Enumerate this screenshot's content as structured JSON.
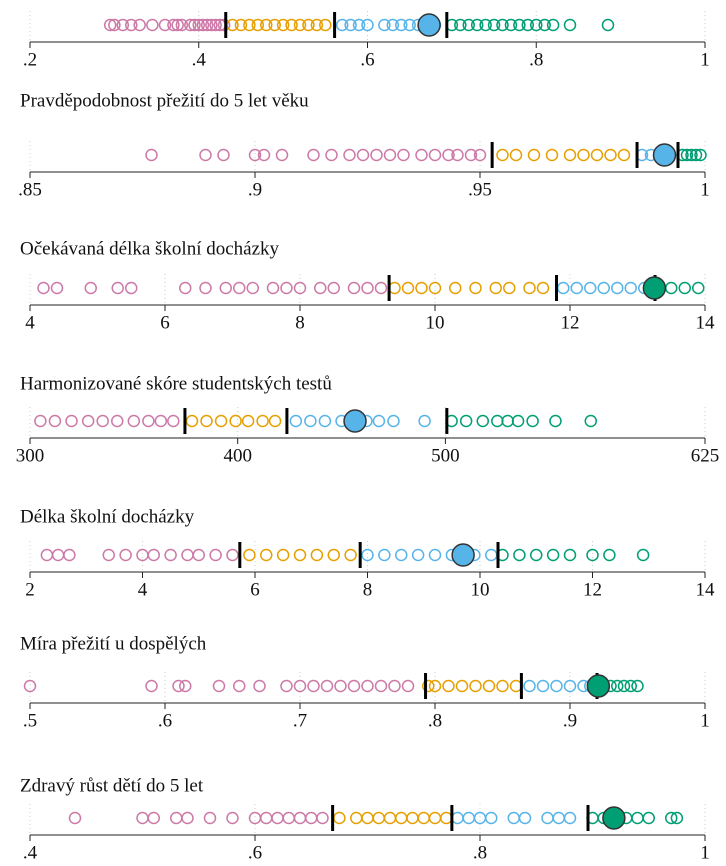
{
  "chart_data": [
    {
      "type": "strip",
      "xlim": [
        0.2,
        1
      ],
      "xticks": [
        {
          "value": 0.2,
          "label": ".2"
        },
        {
          "value": 0.4,
          "label": ".4"
        },
        {
          "value": 0.6,
          "label": ".6"
        },
        {
          "value": 0.8,
          "label": ".8"
        },
        1
      ],
      "cutoffs": [
        0.432,
        0.561,
        0.694
      ],
      "highlight": {
        "value": 0.673,
        "color": "#56b4e9"
      },
      "series": [
        {
          "color": "#cc79a7",
          "values": [
            0.295,
            0.3,
            0.31,
            0.32,
            0.33,
            0.345,
            0.36,
            0.37,
            0.375,
            0.38,
            0.39,
            0.395,
            0.4,
            0.405,
            0.41,
            0.415,
            0.42,
            0.425,
            0.43
          ]
        },
        {
          "color": "#e69f00",
          "values": [
            0.44,
            0.45,
            0.46,
            0.47,
            0.48,
            0.49,
            0.5,
            0.51,
            0.52,
            0.53,
            0.54,
            0.55
          ]
        },
        {
          "color": "#56b4e9",
          "values": [
            0.57,
            0.58,
            0.59,
            0.6,
            0.62,
            0.63,
            0.64,
            0.65,
            0.66,
            0.68
          ]
        },
        {
          "color": "#009e73",
          "values": [
            0.7,
            0.71,
            0.72,
            0.73,
            0.74,
            0.75,
            0.76,
            0.77,
            0.78,
            0.79,
            0.8,
            0.81,
            0.82,
            0.84,
            0.885
          ]
        }
      ]
    },
    {
      "type": "strip",
      "title": "Pravděpodobnost přežití do 5 let věku",
      "xlim": [
        0.85,
        1
      ],
      "xticks": [
        {
          "value": 0.85,
          "label": ".85"
        },
        {
          "value": 0.9,
          "label": ".9"
        },
        {
          "value": 0.95,
          "label": ".95"
        },
        1
      ],
      "cutoffs": [
        0.9527,
        0.9849,
        0.994
      ],
      "highlight": {
        "value": 0.991,
        "color": "#56b4e9"
      },
      "series": [
        {
          "color": "#cc79a7",
          "values": [
            0.877,
            0.889,
            0.893,
            0.9,
            0.902,
            0.906,
            0.913,
            0.917,
            0.921,
            0.924,
            0.927,
            0.93,
            0.933,
            0.937,
            0.94,
            0.943,
            0.945,
            0.948,
            0.95
          ]
        },
        {
          "color": "#e69f00",
          "values": [
            0.955,
            0.958,
            0.962,
            0.966,
            0.97,
            0.973,
            0.976,
            0.979,
            0.982
          ]
        },
        {
          "color": "#56b4e9",
          "values": [
            0.986,
            0.988,
            0.99,
            0.992
          ]
        },
        {
          "color": "#009e73",
          "values": [
            0.995,
            0.996,
            0.997,
            0.998,
            0.999
          ]
        }
      ]
    },
    {
      "type": "strip",
      "title": "Očekávaná délka školní docházky",
      "xlim": [
        4,
        14
      ],
      "xticks": [
        4,
        6,
        8,
        10,
        12,
        14
      ],
      "cutoffs": [
        9.32,
        11.8,
        13.26
      ],
      "highlight": {
        "value": 13.25,
        "color": "#009e73"
      },
      "series": [
        {
          "color": "#cc79a7",
          "values": [
            4.2,
            4.4,
            4.9,
            5.3,
            5.5,
            6.3,
            6.6,
            6.9,
            7.1,
            7.3,
            7.6,
            7.8,
            8.0,
            8.3,
            8.5,
            8.8,
            9.0,
            9.2
          ]
        },
        {
          "color": "#e69f00",
          "values": [
            9.4,
            9.6,
            9.8,
            10.0,
            10.3,
            10.6,
            10.9,
            11.1,
            11.4,
            11.6
          ]
        },
        {
          "color": "#56b4e9",
          "values": [
            11.9,
            12.1,
            12.3,
            12.5,
            12.7,
            12.9,
            13.1
          ]
        },
        {
          "color": "#009e73",
          "values": [
            13.3,
            13.5,
            13.7,
            13.9
          ]
        }
      ]
    },
    {
      "type": "strip",
      "title": "Harmonizované skóre studentských testů",
      "xlim": [
        300,
        625
      ],
      "xticks": [
        300,
        400,
        500,
        625
      ],
      "cutoffs": [
        374.6,
        423.7,
        500.7
      ],
      "highlight": {
        "value": 456.5,
        "color": "#56b4e9"
      },
      "series": [
        {
          "color": "#cc79a7",
          "values": [
            305,
            312,
            320,
            328,
            335,
            342,
            350,
            357,
            363,
            369
          ]
        },
        {
          "color": "#e69f00",
          "values": [
            378,
            385,
            392,
            399,
            405,
            412,
            418
          ]
        },
        {
          "color": "#56b4e9",
          "values": [
            428,
            435,
            442,
            450,
            462,
            468,
            475,
            490
          ]
        },
        {
          "color": "#009e73",
          "values": [
            503,
            510,
            518,
            525,
            530,
            535,
            542,
            553,
            570
          ]
        }
      ]
    },
    {
      "type": "strip",
      "title": "Délka školní docházky",
      "xlim": [
        2,
        14
      ],
      "xticks": [
        2,
        4,
        6,
        8,
        10,
        12,
        14
      ],
      "cutoffs": [
        5.73,
        7.87,
        10.32
      ],
      "highlight": {
        "value": 9.7,
        "color": "#56b4e9"
      },
      "series": [
        {
          "color": "#cc79a7",
          "values": [
            2.3,
            2.5,
            2.7,
            3.4,
            3.7,
            4.0,
            4.2,
            4.5,
            4.8,
            5.0,
            5.3,
            5.6
          ]
        },
        {
          "color": "#e69f00",
          "values": [
            5.9,
            6.2,
            6.5,
            6.8,
            7.1,
            7.4,
            7.7
          ]
        },
        {
          "color": "#56b4e9",
          "values": [
            8.0,
            8.3,
            8.6,
            8.9,
            9.2,
            9.5,
            9.9,
            10.2
          ]
        },
        {
          "color": "#009e73",
          "values": [
            10.4,
            10.7,
            11.0,
            11.3,
            11.6,
            12.0,
            12.3,
            12.9
          ]
        }
      ]
    },
    {
      "type": "strip",
      "title": "Míra přežití u dospělých",
      "xlim": [
        0.5,
        1
      ],
      "xticks": [
        {
          "value": 0.5,
          "label": ".5"
        },
        {
          "value": 0.6,
          "label": ".6"
        },
        {
          "value": 0.7,
          "label": ".7"
        },
        {
          "value": 0.8,
          "label": ".8"
        },
        {
          "value": 0.9,
          "label": ".9"
        },
        1
      ],
      "cutoffs": [
        0.793,
        0.864,
        0.92
      ],
      "highlight": {
        "value": 0.921,
        "color": "#009e73"
      },
      "series": [
        {
          "color": "#cc79a7",
          "values": [
            0.5,
            0.59,
            0.61,
            0.615,
            0.64,
            0.655,
            0.67,
            0.69,
            0.7,
            0.71,
            0.72,
            0.73,
            0.74,
            0.75,
            0.76,
            0.77,
            0.78
          ]
        },
        {
          "color": "#e69f00",
          "values": [
            0.795,
            0.8,
            0.81,
            0.82,
            0.83,
            0.84,
            0.85,
            0.86
          ]
        },
        {
          "color": "#56b4e9",
          "values": [
            0.87,
            0.88,
            0.89,
            0.9,
            0.91,
            0.915
          ]
        },
        {
          "color": "#009e73",
          "values": [
            0.925,
            0.93,
            0.935,
            0.94,
            0.945,
            0.95
          ]
        }
      ]
    },
    {
      "type": "strip",
      "title": "Zdravý růst dětí do 5 let",
      "xlim": [
        0.4,
        1
      ],
      "xticks": [
        {
          "value": 0.4,
          "label": ".4"
        },
        {
          "value": 0.6,
          "label": ".6"
        },
        {
          "value": 0.8,
          "label": ".8"
        },
        1
      ],
      "cutoffs": [
        0.669,
        0.775,
        0.896
      ],
      "highlight": {
        "value": 0.919,
        "color": "#009e73"
      },
      "series": [
        {
          "color": "#cc79a7",
          "values": [
            0.44,
            0.5,
            0.51,
            0.53,
            0.54,
            0.56,
            0.58,
            0.6,
            0.61,
            0.62,
            0.63,
            0.64,
            0.65,
            0.66
          ]
        },
        {
          "color": "#e69f00",
          "values": [
            0.675,
            0.69,
            0.7,
            0.71,
            0.72,
            0.73,
            0.74,
            0.75,
            0.76,
            0.77
          ]
        },
        {
          "color": "#56b4e9",
          "values": [
            0.78,
            0.79,
            0.8,
            0.81,
            0.83,
            0.84,
            0.86,
            0.87,
            0.88
          ]
        },
        {
          "color": "#009e73",
          "values": [
            0.9,
            0.91,
            0.93,
            0.94,
            0.95,
            0.97,
            0.975
          ]
        }
      ]
    }
  ]
}
